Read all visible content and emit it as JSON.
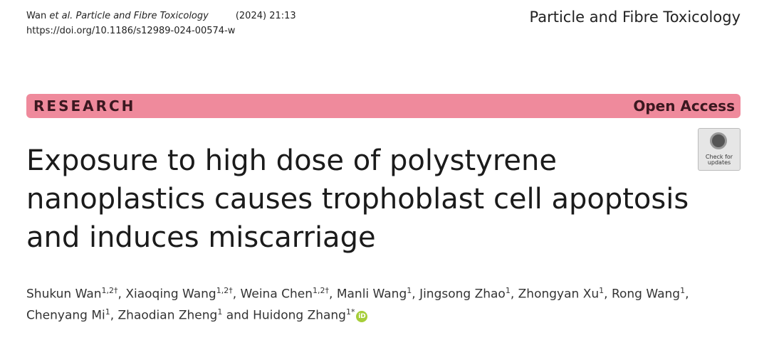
{
  "header": {
    "citation": {
      "author": "Wan",
      "etal": "et al.",
      "journal": "Particle and Fibre Toxicology",
      "year": "(2024) 21:13"
    },
    "doi": "https://doi.org/10.1186/s12989-024-00574-w",
    "journal_name": "Particle and Fibre Toxicology"
  },
  "banner": {
    "label": "RESEARCH",
    "access": "Open Access"
  },
  "badge": {
    "lines": [
      "Check for",
      "updates"
    ]
  },
  "title": {
    "lines": [
      "Exposure to high dose of polystyrene",
      "nanoplastics causes trophoblast cell apoptosis",
      "and induces miscarriage"
    ]
  },
  "authors": {
    "lines": [
      [
        {
          "name": "Shukun Wan",
          "affil": "1,2†",
          "sep": ","
        },
        {
          "name": "Xiaoqing Wang",
          "affil": "1,2†",
          "sep": ","
        },
        {
          "name": "Weina Chen",
          "affil": "1,2†",
          "sep": ","
        },
        {
          "name": "Manli Wang",
          "affil": "1",
          "sep": ","
        },
        {
          "name": "Jingsong Zhao",
          "affil": "1",
          "sep": ","
        },
        {
          "name": "Zhongyan Xu",
          "affil": "1",
          "sep": ","
        },
        {
          "name": "Rong Wang",
          "affil": "1",
          "sep": ","
        }
      ],
      [
        {
          "name": "Chenyang Mi",
          "affil": "1",
          "sep": ","
        },
        {
          "name": "Zhaodian Zheng",
          "affil": "1"
        },
        {
          "conj": "and"
        },
        {
          "name": "Huidong Zhang",
          "affil": "1*",
          "orcid": "iD"
        }
      ]
    ]
  }
}
